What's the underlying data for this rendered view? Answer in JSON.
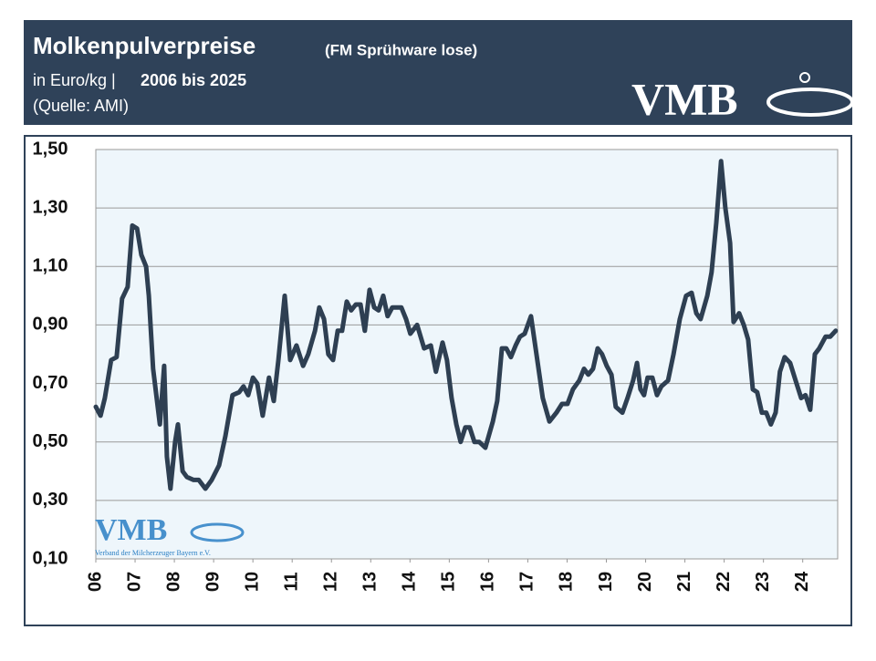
{
  "chart_data": {
    "type": "line",
    "title": "Molkenpulverpreise",
    "title_note": "(FM Sprühware lose)",
    "subtitle_unit": "in Euro/kg |",
    "subtitle_period": "2006 bis 2025",
    "source": "(Quelle: AMI)",
    "logo": "VMB",
    "watermark": "VMB",
    "watermark_caption": "Verband der Milcherzeuger Bayern e.V.",
    "xlim": [
      2006,
      2024.89
    ],
    "xticks": [
      {
        "value": 2006,
        "label": "06"
      },
      {
        "value": 2007,
        "label": "07"
      },
      {
        "value": 2008,
        "label": "08"
      },
      {
        "value": 2009,
        "label": "09"
      },
      {
        "value": 2010,
        "label": "10"
      },
      {
        "value": 2011,
        "label": "11"
      },
      {
        "value": 2012,
        "label": "12"
      },
      {
        "value": 2013,
        "label": "13"
      },
      {
        "value": 2014,
        "label": "14"
      },
      {
        "value": 2015,
        "label": "15"
      },
      {
        "value": 2016,
        "label": "16"
      },
      {
        "value": 2017,
        "label": "17"
      },
      {
        "value": 2018,
        "label": "18"
      },
      {
        "value": 2019,
        "label": "19"
      },
      {
        "value": 2020,
        "label": "20"
      },
      {
        "value": 2021,
        "label": "21"
      },
      {
        "value": 2022,
        "label": "22"
      },
      {
        "value": 2023,
        "label": "23"
      },
      {
        "value": 2024,
        "label": "24"
      }
    ],
    "ylim": [
      0.1,
      1.5
    ],
    "yticks": [
      {
        "value": 0.1,
        "label": "0,10"
      },
      {
        "value": 0.3,
        "label": "0,30"
      },
      {
        "value": 0.5,
        "label": "0,50"
      },
      {
        "value": 0.7,
        "label": "0,70"
      },
      {
        "value": 0.9,
        "label": "0,90"
      },
      {
        "value": 1.1,
        "label": "1,10"
      },
      {
        "value": 1.3,
        "label": "1,30"
      },
      {
        "value": 1.5,
        "label": "1,50"
      }
    ],
    "grid": true,
    "x": [
      2006.0,
      2006.12,
      2006.23,
      2006.39,
      2006.53,
      2006.67,
      2006.81,
      2006.93,
      2007.05,
      2007.16,
      2007.28,
      2007.35,
      2007.46,
      2007.63,
      2007.74,
      2007.81,
      2007.9,
      2008.02,
      2008.09,
      2008.21,
      2008.32,
      2008.49,
      2008.62,
      2008.79,
      2008.95,
      2009.14,
      2009.3,
      2009.48,
      2009.65,
      2009.76,
      2009.88,
      2010.0,
      2010.11,
      2010.25,
      2010.41,
      2010.53,
      2010.65,
      2010.81,
      2010.95,
      2011.11,
      2011.28,
      2011.41,
      2011.58,
      2011.69,
      2011.81,
      2011.92,
      2012.04,
      2012.16,
      2012.27,
      2012.39,
      2012.5,
      2012.62,
      2012.74,
      2012.85,
      2012.97,
      2013.09,
      2013.2,
      2013.32,
      2013.43,
      2013.55,
      2013.78,
      2013.9,
      2014.01,
      2014.18,
      2014.36,
      2014.53,
      2014.66,
      2014.83,
      2014.94,
      2015.06,
      2015.18,
      2015.29,
      2015.41,
      2015.52,
      2015.64,
      2015.76,
      2015.92,
      2016.11,
      2016.22,
      2016.34,
      2016.45,
      2016.57,
      2016.69,
      2016.8,
      2016.92,
      2017.08,
      2017.22,
      2017.38,
      2017.55,
      2017.73,
      2017.87,
      2018.01,
      2018.15,
      2018.31,
      2018.43,
      2018.54,
      2018.66,
      2018.78,
      2018.89,
      2019.01,
      2019.13,
      2019.24,
      2019.41,
      2019.54,
      2019.68,
      2019.78,
      2019.87,
      2019.96,
      2020.05,
      2020.17,
      2020.29,
      2020.4,
      2020.57,
      2020.71,
      2020.87,
      2021.03,
      2021.17,
      2021.29,
      2021.4,
      2021.57,
      2021.68,
      2021.8,
      2021.92,
      2022.03,
      2022.15,
      2022.24,
      2022.38,
      2022.5,
      2022.61,
      2022.73,
      2022.84,
      2022.96,
      2023.07,
      2023.19,
      2023.31,
      2023.42,
      2023.54,
      2023.68,
      2023.82,
      2023.96,
      2024.07,
      2024.19,
      2024.31,
      2024.42,
      2024.58,
      2024.7,
      2024.84
    ],
    "series": [
      {
        "color": "#2e3f52",
        "values": [
          0.62,
          0.59,
          0.65,
          0.78,
          0.79,
          0.99,
          1.03,
          1.24,
          1.23,
          1.14,
          1.1,
          1.0,
          0.75,
          0.56,
          0.76,
          0.45,
          0.34,
          0.5,
          0.56,
          0.4,
          0.38,
          0.37,
          0.37,
          0.34,
          0.37,
          0.42,
          0.52,
          0.66,
          0.67,
          0.69,
          0.66,
          0.72,
          0.7,
          0.59,
          0.72,
          0.64,
          0.78,
          1.0,
          0.78,
          0.83,
          0.76,
          0.8,
          0.88,
          0.96,
          0.92,
          0.8,
          0.78,
          0.88,
          0.88,
          0.98,
          0.95,
          0.97,
          0.97,
          0.88,
          1.02,
          0.96,
          0.95,
          1.0,
          0.93,
          0.96,
          0.96,
          0.92,
          0.87,
          0.9,
          0.82,
          0.83,
          0.74,
          0.84,
          0.78,
          0.65,
          0.56,
          0.5,
          0.55,
          0.55,
          0.5,
          0.5,
          0.48,
          0.57,
          0.64,
          0.82,
          0.82,
          0.79,
          0.83,
          0.86,
          0.87,
          0.93,
          0.8,
          0.65,
          0.57,
          0.6,
          0.63,
          0.63,
          0.68,
          0.71,
          0.75,
          0.73,
          0.75,
          0.82,
          0.8,
          0.76,
          0.73,
          0.62,
          0.6,
          0.65,
          0.71,
          0.77,
          0.68,
          0.66,
          0.72,
          0.72,
          0.66,
          0.69,
          0.71,
          0.8,
          0.92,
          1.0,
          1.01,
          0.94,
          0.92,
          1.0,
          1.08,
          1.25,
          1.46,
          1.3,
          1.18,
          0.91,
          0.94,
          0.9,
          0.85,
          0.68,
          0.67,
          0.6,
          0.6,
          0.56,
          0.6,
          0.74,
          0.79,
          0.77,
          0.71,
          0.65,
          0.66,
          0.61,
          0.8,
          0.82,
          0.86,
          0.86,
          0.88
        ]
      }
    ]
  }
}
